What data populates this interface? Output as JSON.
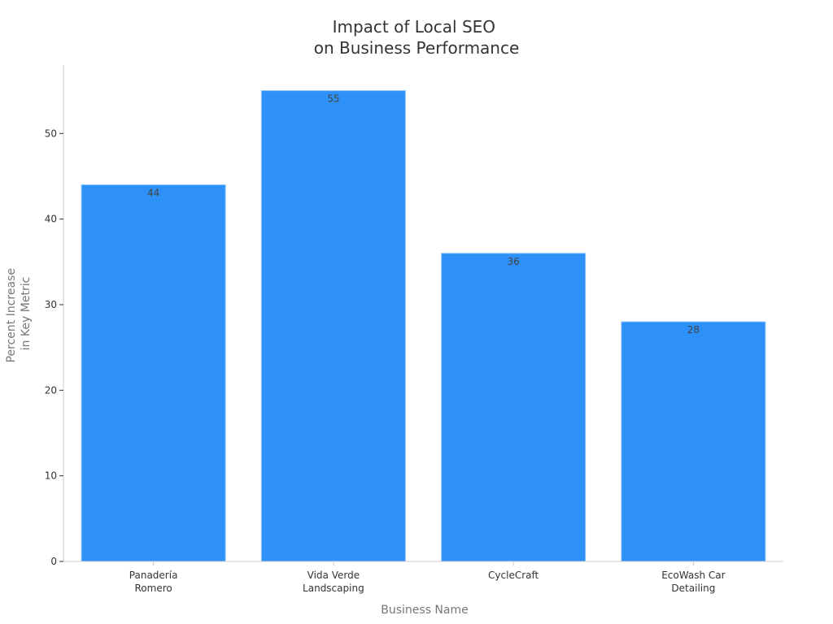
{
  "chart_data": {
    "type": "bar",
    "title": [
      "Impact of Local SEO",
      "on Business Performance"
    ],
    "xlabel": "Business Name",
    "ylabel": [
      "Percent Increase",
      "in Key Metric"
    ],
    "categories": [
      [
        "Panadería",
        "Romero"
      ],
      [
        "Vida Verde",
        "Landscaping"
      ],
      [
        "CycleCraft"
      ],
      [
        "EcoWash Car",
        "Detailing"
      ]
    ],
    "values": [
      44,
      55,
      36,
      28
    ],
    "data_labels": [
      "44",
      "55",
      "36",
      "28"
    ],
    "ylim": [
      0,
      58
    ],
    "yticks": [
      0,
      10,
      20,
      30,
      40,
      50
    ],
    "ytick_labels": [
      "0",
      "10",
      "20",
      "30",
      "40",
      "50"
    ],
    "grid": false,
    "legend": "none",
    "bar_color": "#2e91f8",
    "bar_edge_color": "#8cc3fb",
    "axis_color": "#cccccc",
    "tick_color": "#333333"
  }
}
